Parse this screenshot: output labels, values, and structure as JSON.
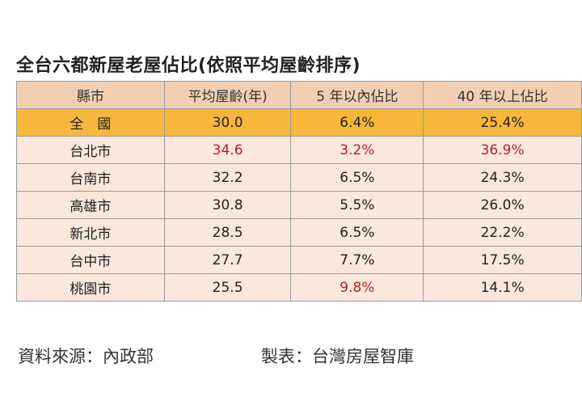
{
  "title": "全台六都新屋老屋佔比(依照平均屋齡排序)",
  "chart_data": {
    "type": "table",
    "columns": [
      "縣市",
      "平均屋齡(年)",
      "5 年以內佔比",
      "40 年以上佔比"
    ],
    "rows": [
      {
        "name": "全　國",
        "avg_age": "30.0",
        "within5": "6.4%",
        "over40": "25.4%",
        "highlight": []
      },
      {
        "name": "台北市",
        "avg_age": "34.6",
        "within5": "3.2%",
        "over40": "36.9%",
        "highlight": [
          1,
          2,
          3
        ]
      },
      {
        "name": "台南市",
        "avg_age": "32.2",
        "within5": "6.5%",
        "over40": "24.3%",
        "highlight": []
      },
      {
        "name": "高雄市",
        "avg_age": "30.8",
        "within5": "5.5%",
        "over40": "26.0%",
        "highlight": []
      },
      {
        "name": "新北市",
        "avg_age": "28.5",
        "within5": "6.5%",
        "over40": "22.2%",
        "highlight": []
      },
      {
        "name": "台中市",
        "avg_age": "27.7",
        "within5": "7.7%",
        "over40": "17.5%",
        "highlight": []
      },
      {
        "name": "桃園市",
        "avg_age": "25.5",
        "within5": "9.8%",
        "over40": "14.1%",
        "highlight": [
          2
        ]
      }
    ]
  },
  "footer": {
    "source": "資料來源：內政部",
    "maker": "製表：台灣房屋智庫"
  },
  "colors": {
    "header_bg": "#f2cfb3",
    "total_row_bg": "#f6b73c",
    "row_bg": "#fbe7dc",
    "highlight_text": "#b0242c"
  }
}
